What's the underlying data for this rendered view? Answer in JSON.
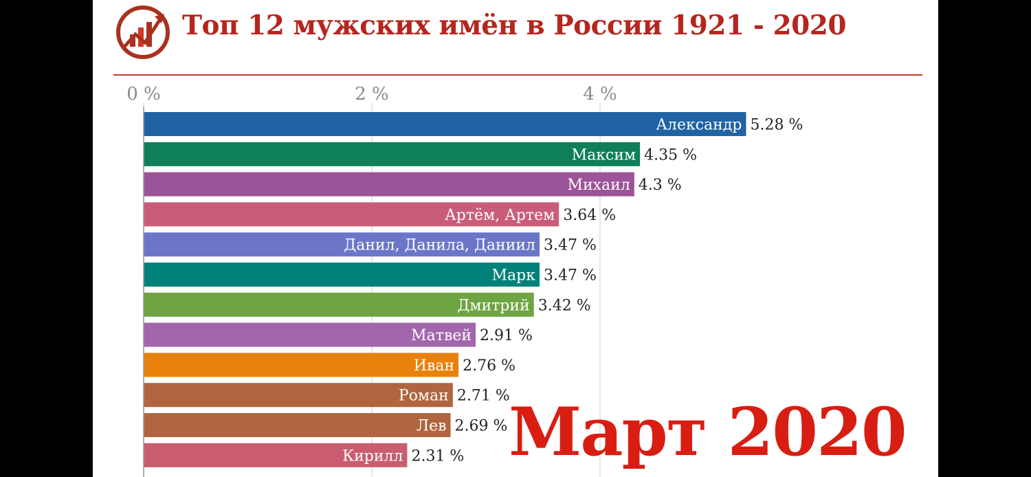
{
  "header": {
    "title": "Топ 12 мужских имён в России 1921 - 2020",
    "logo_icon": "bar-chart-arrow-icon"
  },
  "period_label": "Март 2020",
  "colors": {
    "title": "#b5261e",
    "period": "#d81e13",
    "rule": "#c0392b"
  },
  "chart_data": {
    "type": "bar",
    "orientation": "horizontal",
    "title": "Топ 12 мужских имён в России 1921 - 2020",
    "x_ticks": [
      "0 %",
      "2 %",
      "4 %"
    ],
    "x_tick_values": [
      0,
      2,
      4
    ],
    "xlim": [
      0,
      6.06
    ],
    "grid": true,
    "categories": [
      "Александр",
      "Максим",
      "Михаил",
      "Артём, Артем",
      "Данил, Данила, Даниил",
      "Марк",
      "Дмитрий",
      "Матвей",
      "Иван",
      "Роман",
      "Лев",
      "Кирилл"
    ],
    "values": [
      5.28,
      4.35,
      4.3,
      3.64,
      3.47,
      3.47,
      3.42,
      2.91,
      2.76,
      2.71,
      2.69,
      2.31
    ],
    "value_labels": [
      "5.28 %",
      "4.35 %",
      "4.3 %",
      "3.64 %",
      "3.47 %",
      "3.47 %",
      "3.42 %",
      "2.91 %",
      "2.76 %",
      "2.71 %",
      "2.69 %",
      "2.31 %"
    ],
    "bar_colors": [
      "#1f63a4",
      "#0e7f5a",
      "#9b5497",
      "#c95d79",
      "#6b76c9",
      "#00817a",
      "#6ea441",
      "#a266ad",
      "#e8820c",
      "#b0653e",
      "#b0653e",
      "#c95d6f"
    ]
  }
}
